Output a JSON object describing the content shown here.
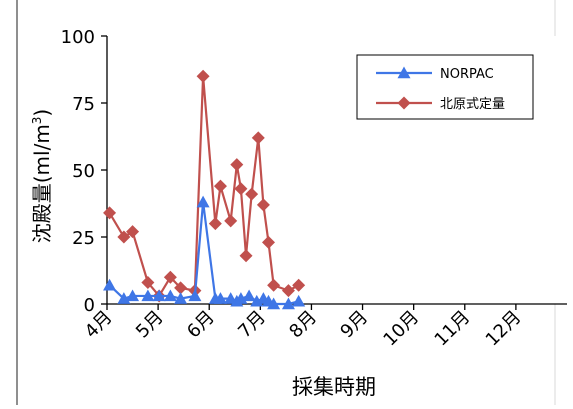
{
  "chart_data": {
    "type": "line",
    "title": "",
    "xlabel": "採集時期",
    "ylabel": "沈殿量(ml/m",
    "ylabel_sup": "3",
    "ylabel_close": ")",
    "ylim": [
      0,
      100
    ],
    "yticks": [
      0,
      25,
      50,
      75,
      100
    ],
    "xlim": [
      4,
      13
    ],
    "xticks": [
      {
        "month": 4,
        "label": "4月"
      },
      {
        "month": 5,
        "label": "5月"
      },
      {
        "month": 6,
        "label": "6月"
      },
      {
        "month": 7,
        "label": "7月"
      },
      {
        "month": 8,
        "label": "8月"
      },
      {
        "month": 9,
        "label": "9月"
      },
      {
        "month": 10,
        "label": "10月"
      },
      {
        "month": 11,
        "label": "11月"
      },
      {
        "month": 12,
        "label": "12月"
      }
    ],
    "grid": false,
    "legend_position": "top-right",
    "series": [
      {
        "name": "NORPAC",
        "color": "#3f76e6",
        "marker": "triangle",
        "points": [
          {
            "x": 4.05,
            "y": 7
          },
          {
            "x": 4.33,
            "y": 2
          },
          {
            "x": 4.5,
            "y": 3
          },
          {
            "x": 4.8,
            "y": 3
          },
          {
            "x": 5.02,
            "y": 3
          },
          {
            "x": 5.24,
            "y": 3
          },
          {
            "x": 5.44,
            "y": 2
          },
          {
            "x": 5.72,
            "y": 3
          },
          {
            "x": 5.88,
            "y": 38
          },
          {
            "x": 6.12,
            "y": 2
          },
          {
            "x": 6.22,
            "y": 2
          },
          {
            "x": 6.42,
            "y": 2
          },
          {
            "x": 6.54,
            "y": 1
          },
          {
            "x": 6.62,
            "y": 2
          },
          {
            "x": 6.78,
            "y": 3
          },
          {
            "x": 6.93,
            "y": 1
          },
          {
            "x": 7.06,
            "y": 2
          },
          {
            "x": 7.16,
            "y": 1
          },
          {
            "x": 7.26,
            "y": 0
          },
          {
            "x": 7.55,
            "y": 0
          },
          {
            "x": 7.75,
            "y": 1
          }
        ]
      },
      {
        "name": "北原式定量",
        "color": "#c0504d",
        "marker": "diamond",
        "points": [
          {
            "x": 4.05,
            "y": 34
          },
          {
            "x": 4.33,
            "y": 25
          },
          {
            "x": 4.5,
            "y": 27
          },
          {
            "x": 4.8,
            "y": 8
          },
          {
            "x": 5.02,
            "y": 3
          },
          {
            "x": 5.24,
            "y": 10
          },
          {
            "x": 5.44,
            "y": 6
          },
          {
            "x": 5.72,
            "y": 5
          },
          {
            "x": 5.88,
            "y": 85
          },
          {
            "x": 6.12,
            "y": 30
          },
          {
            "x": 6.22,
            "y": 44
          },
          {
            "x": 6.42,
            "y": 31
          },
          {
            "x": 6.54,
            "y": 52
          },
          {
            "x": 6.62,
            "y": 43
          },
          {
            "x": 6.72,
            "y": 18
          },
          {
            "x": 6.83,
            "y": 41
          },
          {
            "x": 6.96,
            "y": 62
          },
          {
            "x": 7.06,
            "y": 37
          },
          {
            "x": 7.16,
            "y": 23
          },
          {
            "x": 7.26,
            "y": 7
          },
          {
            "x": 7.55,
            "y": 5
          },
          {
            "x": 7.75,
            "y": 7
          }
        ]
      }
    ]
  }
}
